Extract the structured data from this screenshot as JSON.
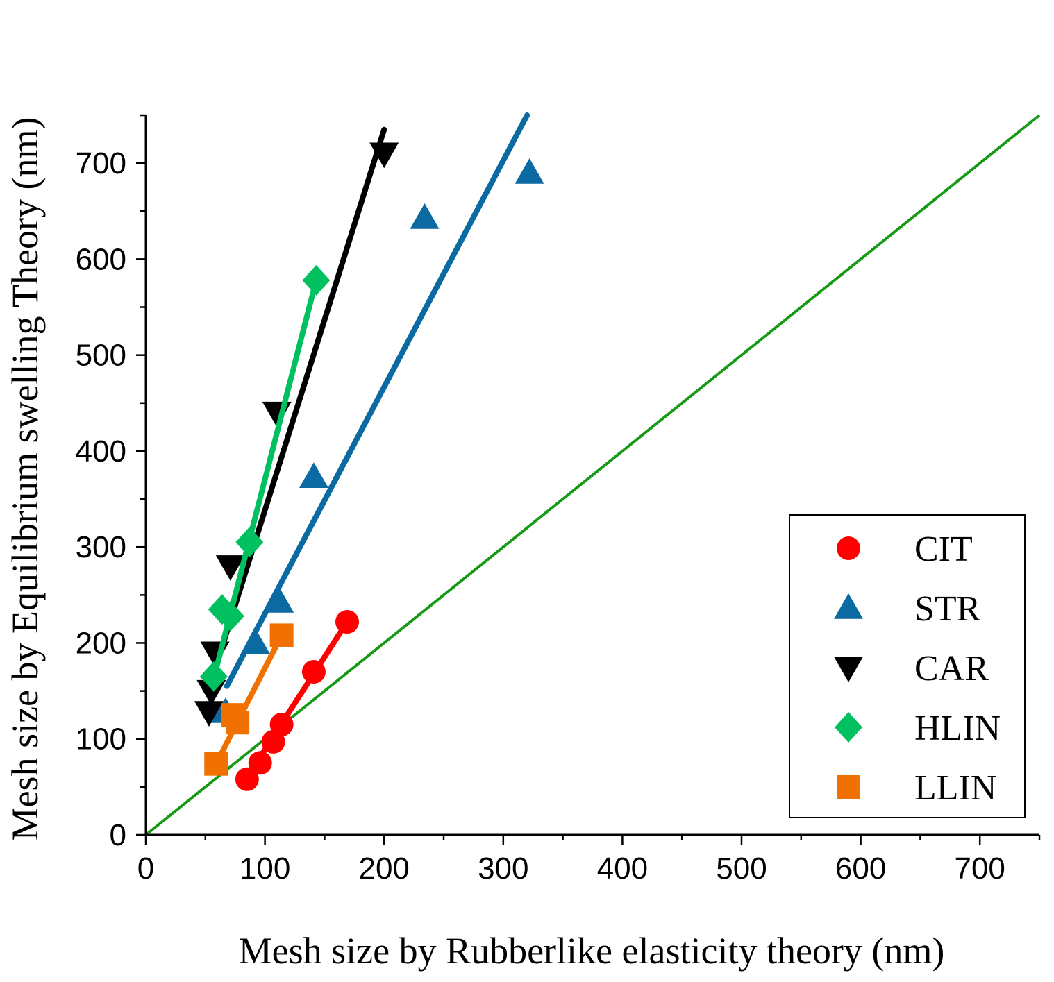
{
  "chart_data": {
    "type": "scatter",
    "title": "",
    "xlabel": "Mesh size by Rubberlike elasticity theory (nm)",
    "ylabel": "Mesh size by Equilibrium swelling Theory (nm)",
    "xlim": [
      0,
      750
    ],
    "ylim": [
      0,
      750
    ],
    "xticks": [
      "0",
      "100",
      "200",
      "300",
      "400",
      "500",
      "600",
      "700"
    ],
    "yticks": [
      "0",
      "100",
      "200",
      "300",
      "400",
      "500",
      "600",
      "700"
    ],
    "legend_position": "bottom-right",
    "series": [
      {
        "name": "CIT",
        "marker": "circle",
        "color": "#ff0000",
        "x": [
          85,
          96,
          107,
          114,
          141,
          169
        ],
        "y": [
          58,
          75,
          97,
          115,
          170,
          222
        ],
        "fit": [
          [
            85,
            60
          ],
          [
            169,
            222
          ]
        ]
      },
      {
        "name": "STR",
        "marker": "triangle-up",
        "color": "#0a6aa1",
        "x": [
          67,
          92,
          112,
          141,
          234,
          322
        ],
        "y": [
          128,
          200,
          243,
          373,
          643,
          690
        ],
        "fit": [
          [
            68,
            155
          ],
          [
            320,
            750
          ]
        ]
      },
      {
        "name": "CAR",
        "marker": "triangle-down",
        "color": "#000000",
        "x": [
          53,
          55,
          58,
          71,
          110,
          200
        ],
        "y": [
          128,
          150,
          190,
          280,
          440,
          710
        ],
        "fit": [
          [
            55,
            160
          ],
          [
            200,
            735
          ]
        ]
      },
      {
        "name": "HLIN",
        "marker": "diamond",
        "color": "#00c060",
        "x": [
          57,
          64,
          71,
          87,
          143
        ],
        "y": [
          165,
          235,
          228,
          305,
          578
        ],
        "fit": [
          [
            57,
            163
          ],
          [
            143,
            578
          ]
        ]
      },
      {
        "name": "LLIN",
        "marker": "square",
        "color": "#f07000",
        "x": [
          59,
          73,
          77,
          114
        ],
        "y": [
          74,
          125,
          117,
          208
        ],
        "fit": [
          [
            59,
            74
          ],
          [
            114,
            208
          ]
        ]
      }
    ],
    "reference_line": {
      "name": "y = x",
      "color": "#169a16",
      "points": [
        [
          0,
          0
        ],
        [
          750,
          750
        ]
      ]
    }
  }
}
